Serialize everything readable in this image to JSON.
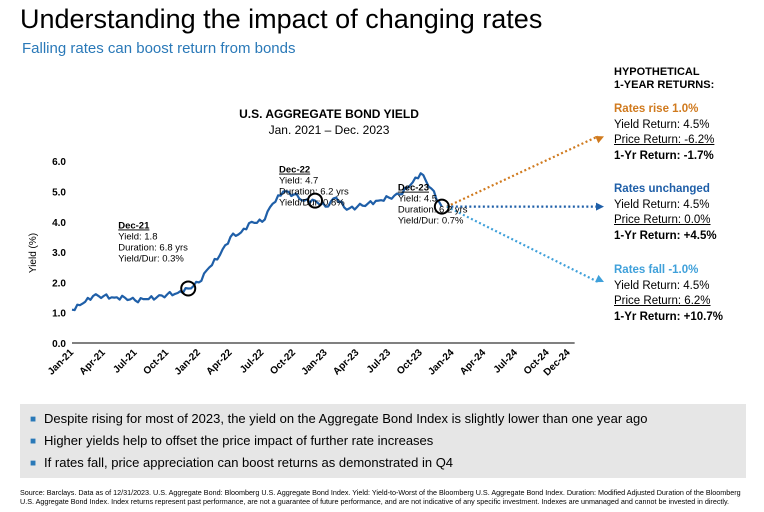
{
  "header": {
    "title": "Understanding the impact of changing rates",
    "subtitle": "Falling rates can boost return from bonds"
  },
  "colors": {
    "line": "#1f5fa8",
    "rise": "#d07a1e",
    "unchanged": "#1f5fa8",
    "fall": "#3fa0da",
    "subtitle": "#2a79b8"
  },
  "chart_data": {
    "type": "line",
    "title": "U.S. AGGREGATE BOND YIELD",
    "subtitle": "Jan. 2021 – Dec. 2023",
    "ylabel": "Yield (%)",
    "ylim": [
      0,
      6
    ],
    "yticks": [
      "0.0",
      "1.0",
      "2.0",
      "3.0",
      "4.0",
      "5.0",
      "6.0"
    ],
    "xticks": [
      "Jan-21",
      "Apr-21",
      "Jul-21",
      "Oct-21",
      "Jan-22",
      "Apr-22",
      "Jul-22",
      "Oct-22",
      "Jan-23",
      "Apr-23",
      "Jul-23",
      "Oct-23",
      "Jan-24",
      "Apr-24",
      "Jul-24",
      "Oct-24",
      "Dec-24"
    ],
    "series": [
      {
        "x": [
          "2021-01",
          "2021-02",
          "2021-03",
          "2021-04",
          "2021-05",
          "2021-06",
          "2021-07",
          "2021-08",
          "2021-09",
          "2021-10",
          "2021-11",
          "2021-12",
          "2022-01",
          "2022-02",
          "2022-03",
          "2022-04",
          "2022-05",
          "2022-06",
          "2022-07",
          "2022-08",
          "2022-09",
          "2022-10",
          "2022-11",
          "2022-12",
          "2023-01",
          "2023-02",
          "2023-03",
          "2023-04",
          "2023-05",
          "2023-06",
          "2023-07",
          "2023-08",
          "2023-09",
          "2023-10",
          "2023-11",
          "2023-12"
        ],
        "values": [
          1.1,
          1.3,
          1.55,
          1.55,
          1.5,
          1.5,
          1.4,
          1.45,
          1.5,
          1.6,
          1.65,
          1.8,
          2.0,
          2.5,
          2.9,
          3.5,
          3.65,
          4.0,
          4.0,
          4.6,
          5.0,
          4.9,
          4.7,
          4.7,
          4.5,
          4.8,
          4.4,
          4.5,
          4.6,
          4.7,
          4.8,
          4.9,
          5.2,
          5.6,
          5.1,
          4.5
        ]
      }
    ],
    "annotations": [
      {
        "head": "Dec-21",
        "lines": [
          "Yield: 1.8",
          "Duration: 6.8 yrs",
          "Yield/Dur: 0.3%"
        ],
        "x": "2021-12",
        "y": 1.8
      },
      {
        "head": "Dec-22",
        "lines": [
          "Yield: 4.7",
          "Duration: 6.2 yrs",
          "Yield/Dur: 0.8%"
        ],
        "x": "2022-12",
        "y": 4.7
      },
      {
        "head": "Dec-23",
        "lines": [
          "Yield: 4.5",
          "Duration: 6.2 yrs",
          "Yield/Dur: 0.7%"
        ],
        "x": "2023-12",
        "y": 4.5
      }
    ]
  },
  "scenarios": {
    "heading_1": "HYPOTHETICAL",
    "heading_2": "1-YEAR RETURNS:",
    "items": [
      {
        "title": "Rates rise 1.0%",
        "yield": "Yield Return: 4.5%",
        "price": "Price Return: -6.2%",
        "total": "1-Yr Return: -1.7%"
      },
      {
        "title": "Rates unchanged",
        "yield": "Yield Return: 4.5%",
        "price": "Price Return: 0.0%",
        "total": "1-Yr Return: +4.5%"
      },
      {
        "title": "Rates fall -1.0%",
        "yield": "Yield Return: 4.5%",
        "price": "Price Return: 6.2%",
        "total": "1-Yr Return: +10.7%"
      }
    ]
  },
  "bullets": [
    "Despite rising for most of 2023, the yield on the Aggregate Bond Index is slightly lower than one year ago",
    "Higher yields help to offset the price impact of further rate increases",
    "If rates fall, price appreciation can boost returns as demonstrated in Q4"
  ],
  "source": "Source: Barclays. Data as of 12/31/2023. U.S. Aggregate Bond: Bloomberg U.S. Aggregate Bond Index. Yield: Yield-to-Worst of the Bloomberg U.S. Aggregate Bond Index. Duration: Modified Adjusted Duration of the Bloomberg U.S. Aggregate Bond Index. Index returns represent past performance, are not a guarantee of future performance, and are not indicative of any specific investment. Indexes are unmanaged and cannot be invested in directly."
}
